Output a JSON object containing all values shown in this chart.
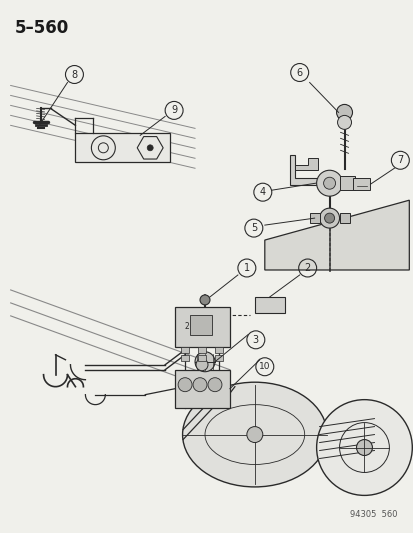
{
  "title": "5–560",
  "watermark": "94305  560",
  "bg": "#f5f5f0",
  "lc": "#2a2a2a",
  "figsize": [
    4.14,
    5.33
  ],
  "dpi": 100
}
